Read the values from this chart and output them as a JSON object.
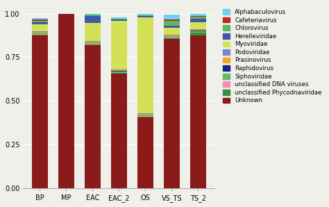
{
  "categories": [
    "BP",
    "MP",
    "EAC",
    "EAC_2",
    "OS",
    "VS_TS",
    "TS_2"
  ],
  "legend_labels": [
    "Alphabaculovirus",
    "Cafeteriavirus",
    "Chlorovirus",
    "Herelleviridae",
    "Myoviridae",
    "Podoviridae",
    "Prasinovirus",
    "Raphidovirus",
    "Siphoviridae",
    "unclassified DNA viruses",
    "unclassified Phycodnaviridae",
    "Unknown"
  ],
  "colors": [
    "#6dcff6",
    "#cc2222",
    "#5cb85c",
    "#3a5aab",
    "#d4e157",
    "#7986cb",
    "#f5a623",
    "#1a237e",
    "#66bb6a",
    "#f48fb1",
    "#388e3c",
    "#8b1a1a"
  ],
  "stack_order": [
    "Unknown",
    "unclassified Phycodnaviridae",
    "unclassified DNA viruses",
    "Siphoviridae",
    "Raphidovirus",
    "Prasinovirus",
    "Podoviridae",
    "Myoviridae",
    "Herelleviridae",
    "Chlorovirus",
    "Cafeteriavirus",
    "Alphabaculovirus"
  ],
  "data": {
    "Unknown": [
      0.875,
      1.0,
      0.82,
      0.655,
      0.405,
      0.855,
      0.875
    ],
    "unclassified Phycodnaviridae": [
      0.005,
      0.0,
      0.005,
      0.005,
      0.005,
      0.005,
      0.015
    ],
    "unclassified DNA viruses": [
      0.002,
      0.0,
      0.002,
      0.002,
      0.002,
      0.002,
      0.002
    ],
    "Siphoviridae": [
      0.008,
      0.0,
      0.008,
      0.008,
      0.008,
      0.008,
      0.008
    ],
    "Raphidovirus": [
      0.002,
      0.0,
      0.002,
      0.002,
      0.002,
      0.002,
      0.002
    ],
    "Prasinovirus": [
      0.003,
      0.0,
      0.003,
      0.003,
      0.003,
      0.003,
      0.003
    ],
    "Podoviridae": [
      0.005,
      0.0,
      0.005,
      0.005,
      0.005,
      0.005,
      0.005
    ],
    "Myoviridae": [
      0.04,
      0.0,
      0.1,
      0.28,
      0.55,
      0.04,
      0.04
    ],
    "Herelleviridae": [
      0.01,
      0.0,
      0.04,
      0.005,
      0.005,
      0.01,
      0.02
    ],
    "Chlorovirus": [
      0.01,
      0.0,
      0.008,
      0.005,
      0.005,
      0.03,
      0.012
    ],
    "Cafeteriavirus": [
      0.005,
      0.0,
      0.002,
      0.002,
      0.002,
      0.005,
      0.003
    ],
    "Alphabaculovirus": [
      0.01,
      0.0,
      0.005,
      0.005,
      0.005,
      0.03,
      0.015
    ]
  },
  "figsize": [
    4.74,
    2.98
  ],
  "dpi": 100,
  "ylim": [
    0.0,
    1.05
  ],
  "yticks": [
    0.0,
    0.25,
    0.5,
    0.75,
    1.0
  ],
  "bar_width": 0.6,
  "legend_fontsize": 6.2,
  "tick_fontsize": 7,
  "background_color": "#f0f0eb",
  "grid_color": "#ffffff"
}
